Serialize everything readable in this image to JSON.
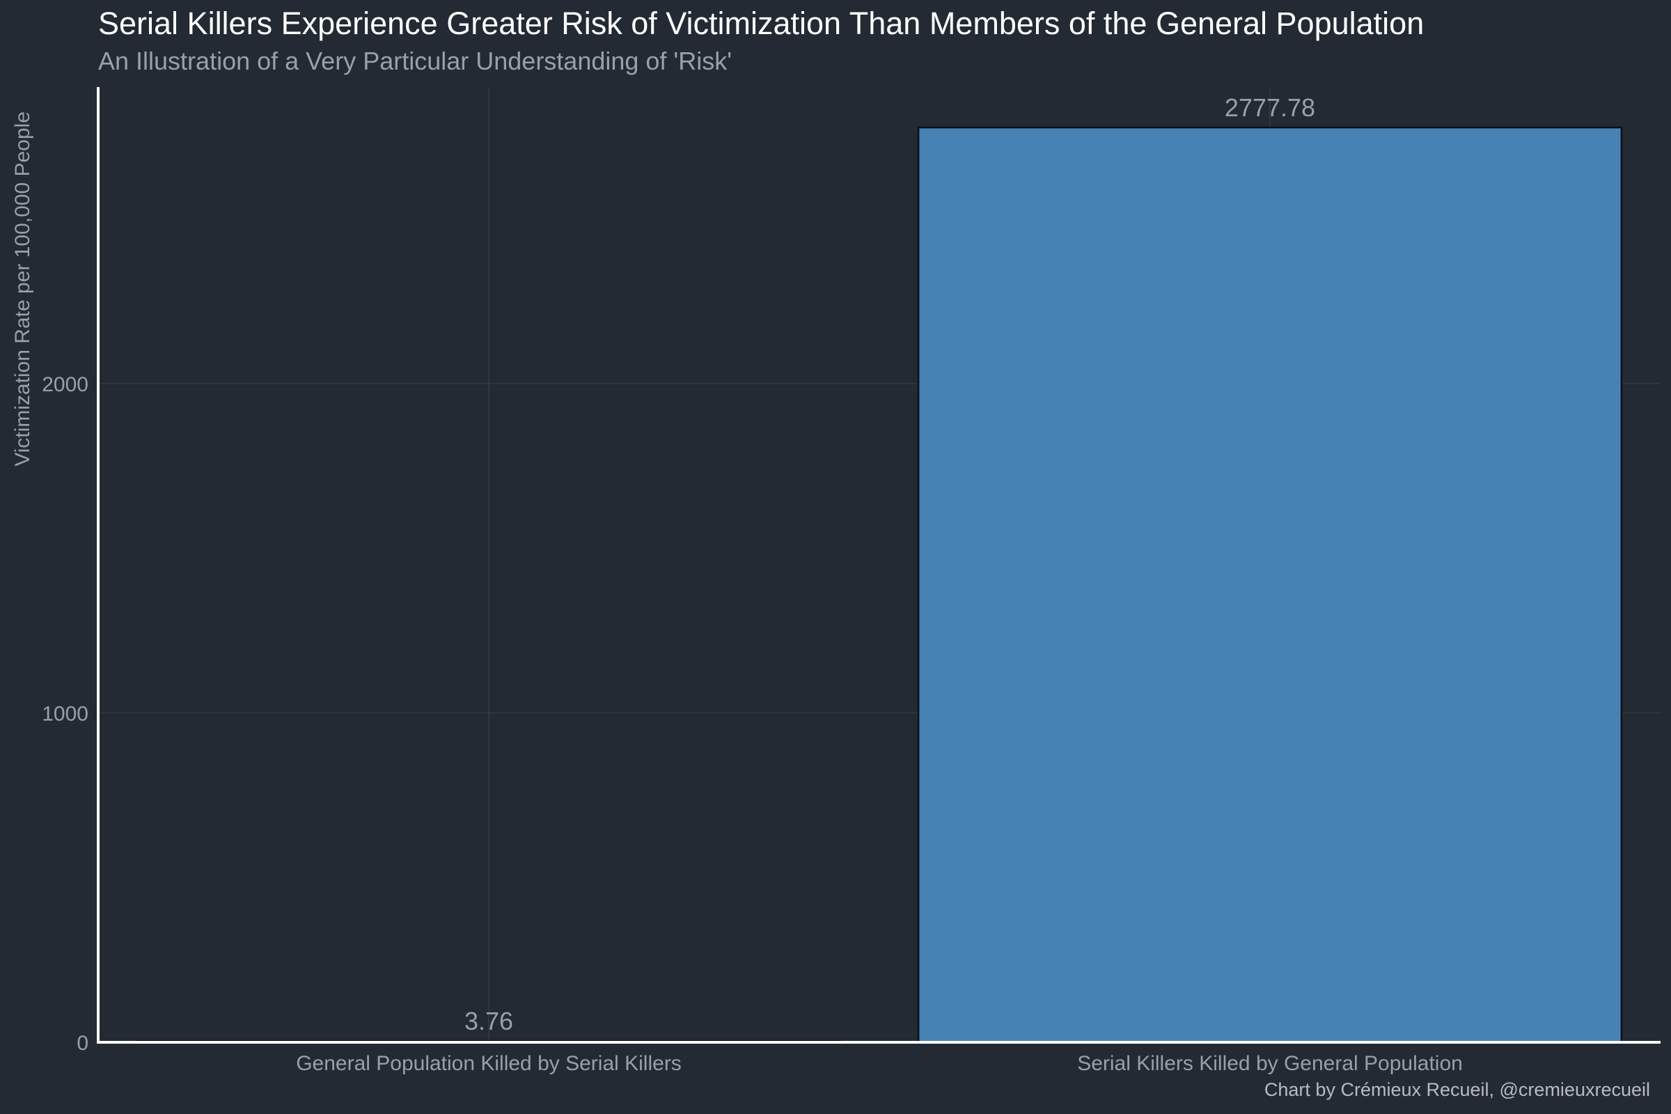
{
  "title": "Serial Killers Experience Greater Risk of Victimization Than Members of the General Population",
  "subtitle": "An Illustration of a Very Particular Understanding of 'Risk'",
  "caption": "Chart by Crémieux Recueil, @cremieuxrecueil",
  "colors": {
    "background": "#232a33",
    "bar": "#4682b4",
    "bar_outline": "#0b0f14",
    "axis_line": "#ffffff",
    "grid": "#343b45",
    "tick_label": "#9aa0a8",
    "data_label": "#9aa0a8"
  },
  "chart_data": {
    "type": "bar",
    "title": "Serial Killers Experience Greater Risk of Victimization Than Members of the General Population",
    "subtitle": "An Illustration of a Very Particular Understanding of 'Risk'",
    "xlabel": "",
    "ylabel": "Victimization Rate per 100,000 People",
    "categories": [
      "General Population Killed by Serial Killers",
      "Serial Killers Killed by General Population"
    ],
    "values": [
      3.76,
      2777.78
    ],
    "data_labels": [
      "3.76",
      "2777.78"
    ],
    "ylim": [
      0,
      2900
    ],
    "yticks": [
      0,
      1000,
      2000
    ],
    "ytick_labels": [
      "0",
      "1000",
      "2000"
    ],
    "grid": true,
    "legend": "none"
  }
}
